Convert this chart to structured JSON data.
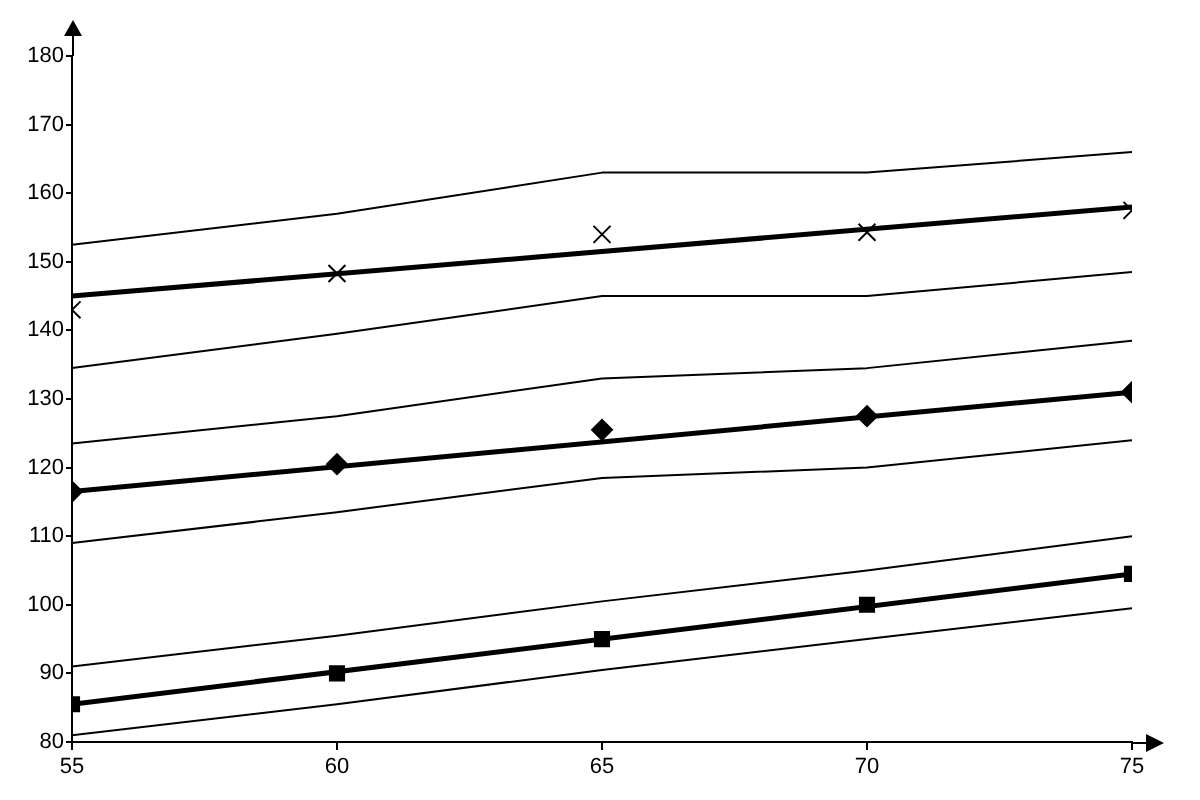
{
  "chart_data": {
    "type": "scatter",
    "xlim": [
      55,
      75
    ],
    "xticks": [
      55,
      60,
      65,
      70,
      75
    ],
    "ylim": [
      80,
      180
    ],
    "yticks": [
      80,
      90,
      100,
      110,
      120,
      130,
      140,
      150,
      160,
      170,
      180
    ],
    "grid": false,
    "legend": false,
    "series": [
      {
        "type": "line",
        "color": "#000000",
        "x": [
          55,
          75
        ],
        "values": [
          145,
          158
        ],
        "marker": "none",
        "line_style": "solid"
      },
      {
        "type": "line",
        "color": "#000000",
        "x": [
          55,
          60,
          65,
          70,
          75
        ],
        "values": [
          152.5,
          157,
          163,
          163,
          166
        ],
        "marker": "none",
        "line_style": "solid"
      },
      {
        "type": "line",
        "color": "#000000",
        "x": [
          55,
          60,
          65,
          70,
          75
        ],
        "values": [
          134.5,
          139.5,
          145,
          145,
          148.5
        ],
        "marker": "none",
        "line_style": "solid"
      },
      {
        "color": "#000000",
        "x": [
          55,
          60,
          65,
          70,
          75
        ],
        "values": [
          143,
          148.3,
          154,
          154.3,
          157.5
        ],
        "marker": "cross"
      },
      {
        "type": "line",
        "color": "#000000",
        "x": [
          55,
          75
        ],
        "values": [
          116.5,
          131
        ],
        "marker": "none",
        "line_style": "solid"
      },
      {
        "type": "line",
        "color": "#000000",
        "x": [
          55,
          60,
          65,
          70,
          75
        ],
        "values": [
          123.5,
          127.5,
          133,
          134.5,
          138.5
        ],
        "marker": "none",
        "line_style": "solid"
      },
      {
        "type": "line",
        "color": "#000000",
        "x": [
          55,
          60,
          65,
          70,
          75
        ],
        "values": [
          109,
          113.5,
          118.5,
          120,
          124
        ],
        "marker": "none",
        "line_style": "solid"
      },
      {
        "color": "#000000",
        "x": [
          55,
          60,
          65,
          70,
          75
        ],
        "values": [
          116.5,
          120.5,
          125.5,
          127.5,
          131
        ],
        "marker": "diamond"
      },
      {
        "type": "line",
        "color": "#000000",
        "x": [
          55,
          75
        ],
        "values": [
          85.5,
          104.5
        ],
        "marker": "none",
        "line_style": "solid"
      },
      {
        "type": "line",
        "color": "#000000",
        "x": [
          55,
          60,
          65,
          70,
          75
        ],
        "values": [
          91,
          95.5,
          100.5,
          105,
          110
        ],
        "marker": "none",
        "line_style": "solid"
      },
      {
        "type": "line",
        "color": "#000000",
        "x": [
          55,
          60,
          65,
          70,
          75
        ],
        "values": [
          81,
          85.5,
          90.5,
          95,
          99.5
        ],
        "marker": "none",
        "line_style": "solid"
      },
      {
        "color": "#000000",
        "x": [
          55,
          60,
          65,
          70,
          75
        ],
        "values": [
          85.5,
          90,
          95,
          100,
          104.5
        ],
        "marker": "square"
      }
    ]
  }
}
